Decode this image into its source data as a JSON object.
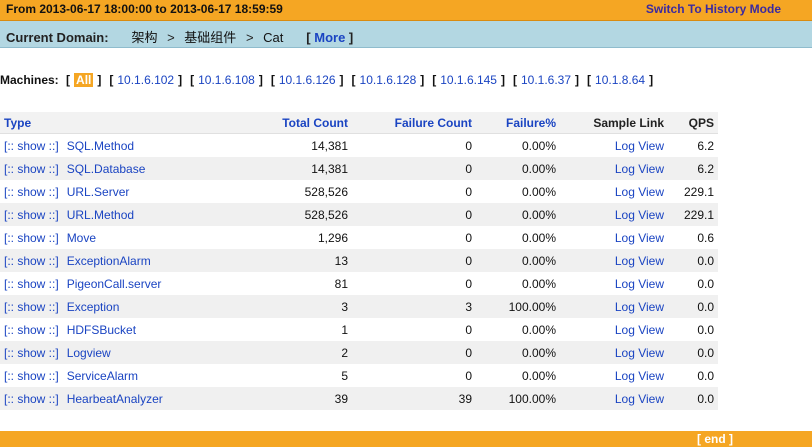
{
  "header": {
    "range_text": "From 2013-06-17 18:00:00 to 2013-06-17 18:59:59",
    "history_link": "Switch To History Mode"
  },
  "domain": {
    "label": "Current Domain:",
    "path": [
      "架构",
      "基础组件",
      "Cat"
    ],
    "sep": ">",
    "more_open": "[",
    "more_label": "More",
    "more_close": "]"
  },
  "machines": {
    "label": "Machines:",
    "open": "[",
    "close": "]",
    "all_label": "All",
    "ips": [
      "10.1.6.102",
      "10.1.6.108",
      "10.1.6.126",
      "10.1.6.128",
      "10.1.6.145",
      "10.1.6.37",
      "10.1.8.64"
    ]
  },
  "table": {
    "headers": {
      "type": "Type",
      "total": "Total Count",
      "failure": "Failure Count",
      "failure_pct": "Failure%",
      "sample": "Sample Link",
      "qps": "QPS"
    },
    "show_label": "[:: show ::]",
    "log_view": "Log View",
    "rows": [
      {
        "name": "SQL.Method",
        "total": "14,381",
        "failure": "0",
        "pct": "0.00%",
        "qps": "6.2"
      },
      {
        "name": "SQL.Database",
        "total": "14,381",
        "failure": "0",
        "pct": "0.00%",
        "qps": "6.2"
      },
      {
        "name": "URL.Server",
        "total": "528,526",
        "failure": "0",
        "pct": "0.00%",
        "qps": "229.1"
      },
      {
        "name": "URL.Method",
        "total": "528,526",
        "failure": "0",
        "pct": "0.00%",
        "qps": "229.1"
      },
      {
        "name": "Move",
        "total": "1,296",
        "failure": "0",
        "pct": "0.00%",
        "qps": "0.6"
      },
      {
        "name": "ExceptionAlarm",
        "total": "13",
        "failure": "0",
        "pct": "0.00%",
        "qps": "0.0"
      },
      {
        "name": "PigeonCall.server",
        "total": "81",
        "failure": "0",
        "pct": "0.00%",
        "qps": "0.0"
      },
      {
        "name": "Exception",
        "total": "3",
        "failure": "3",
        "pct": "100.00%",
        "qps": "0.0"
      },
      {
        "name": "HDFSBucket",
        "total": "1",
        "failure": "0",
        "pct": "0.00%",
        "qps": "0.0"
      },
      {
        "name": "Logview",
        "total": "2",
        "failure": "0",
        "pct": "0.00%",
        "qps": "0.0"
      },
      {
        "name": "ServiceAlarm",
        "total": "5",
        "failure": "0",
        "pct": "0.00%",
        "qps": "0.0"
      },
      {
        "name": "HearbeatAnalyzer",
        "total": "39",
        "failure": "39",
        "pct": "100.00%",
        "qps": "0.0"
      }
    ]
  },
  "footer": {
    "end_label": "[ end ]"
  },
  "colors": {
    "accent_orange": "#f5a623",
    "domain_bar": "#b3d7e2",
    "link_blue": "#1a44c2",
    "history_purple": "#3b2aa0"
  }
}
